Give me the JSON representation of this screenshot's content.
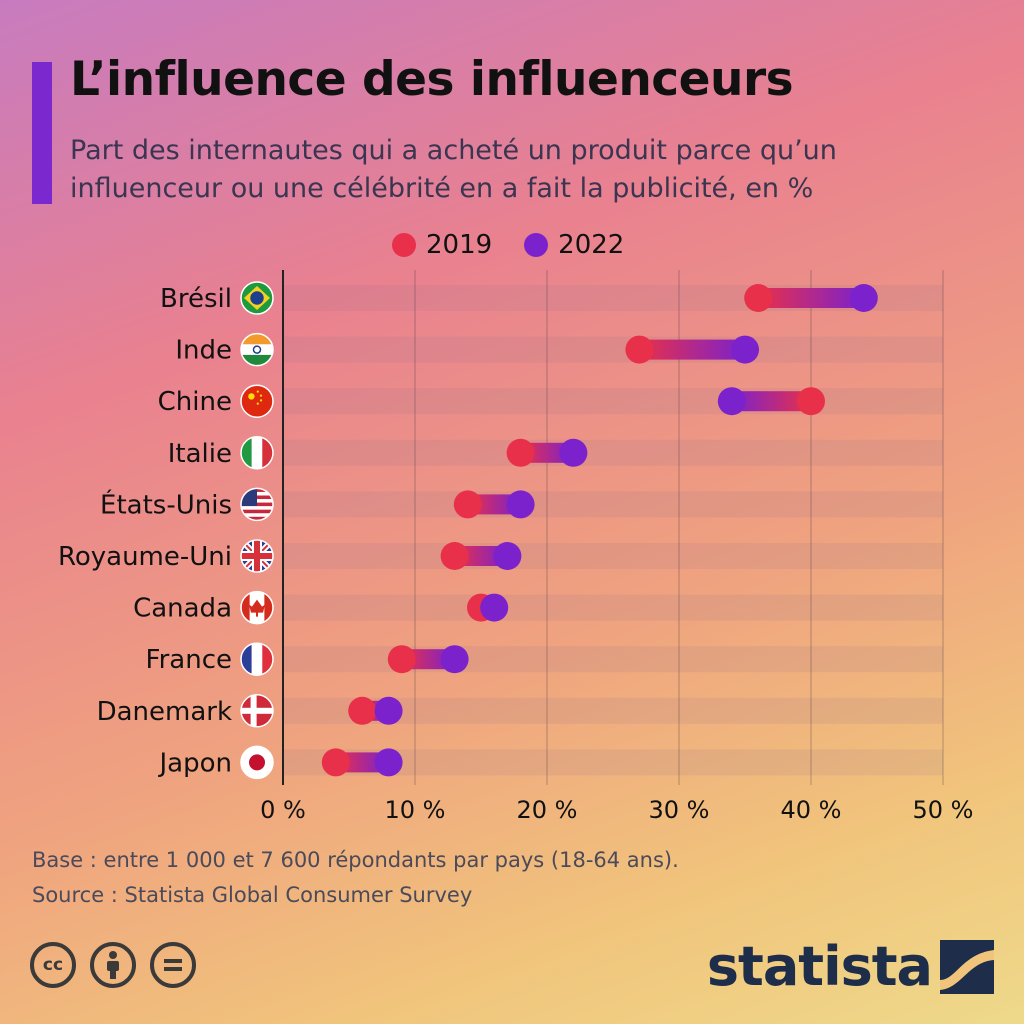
{
  "header": {
    "title": "L’influence des influenceurs",
    "subtitle": "Part des internautes qui a acheté un produit parce qu’un influenceur ou une célébrité en a fait la publicité, en %"
  },
  "colors": {
    "y2019": "#e8304a",
    "y2022": "#7b22cc",
    "accent": "#7b28cf",
    "brand": "#1d2d4a"
  },
  "chart_data": {
    "type": "dumbbell",
    "categories": [
      "Brésil",
      "Inde",
      "Chine",
      "Italie",
      "États-Unis",
      "Royaume-Uni",
      "Canada",
      "France",
      "Danemark",
      "Japon"
    ],
    "flags": [
      "brazil-flag-icon",
      "india-flag-icon",
      "china-flag-icon",
      "italy-flag-icon",
      "usa-flag-icon",
      "uk-flag-icon",
      "canada-flag-icon",
      "france-flag-icon",
      "denmark-flag-icon",
      "japan-flag-icon"
    ],
    "series": [
      {
        "name": "2019",
        "values": [
          36,
          27,
          40,
          18,
          14,
          13,
          15,
          9,
          6,
          4
        ]
      },
      {
        "name": "2022",
        "values": [
          44,
          35,
          34,
          22,
          18,
          17,
          16,
          13,
          8,
          8
        ]
      }
    ],
    "xlim": [
      0,
      50
    ],
    "xticks": [
      0,
      10,
      20,
      30,
      40,
      50
    ],
    "xtick_labels": [
      "0 %",
      "10 %",
      "20 %",
      "30 %",
      "40 %",
      "50 %"
    ],
    "legend": "top",
    "grid": true
  },
  "footer": {
    "base": "Base : entre 1 000 et 7 600 répondants par pays (18-64 ans).",
    "source": "Source : Statista Global Consumer Survey",
    "license_icons": [
      "cc-icon",
      "by-icon",
      "nd-icon"
    ],
    "cc_label": "cc",
    "brand": "statista"
  }
}
